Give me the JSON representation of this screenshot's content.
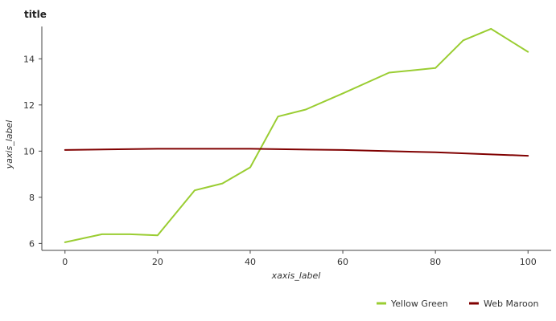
{
  "chart_data": {
    "type": "line",
    "title": "title",
    "xlabel": "xaxis_label",
    "ylabel": "yaxis_label",
    "xlim": [
      -5,
      105
    ],
    "ylim": [
      5.7,
      15.4
    ],
    "xticks": [
      0,
      20,
      40,
      60,
      80,
      100
    ],
    "yticks": [
      6,
      8,
      10,
      12,
      14
    ],
    "grid": false,
    "legend_position": "bottom-right",
    "series": [
      {
        "name": "Yellow Green",
        "color": "#9acd32",
        "x": [
          0,
          8,
          14,
          20,
          28,
          34,
          40,
          46,
          52,
          60,
          70,
          80,
          86,
          92,
          100
        ],
        "y": [
          6.05,
          6.4,
          6.4,
          6.35,
          8.3,
          8.6,
          9.3,
          11.5,
          11.8,
          12.5,
          13.4,
          13.6,
          14.8,
          15.3,
          14.3
        ]
      },
      {
        "name": "Web Maroon",
        "color": "#800000",
        "x": [
          0,
          20,
          40,
          60,
          80,
          100
        ],
        "y": [
          10.05,
          10.1,
          10.1,
          10.05,
          9.95,
          9.8
        ]
      }
    ]
  }
}
